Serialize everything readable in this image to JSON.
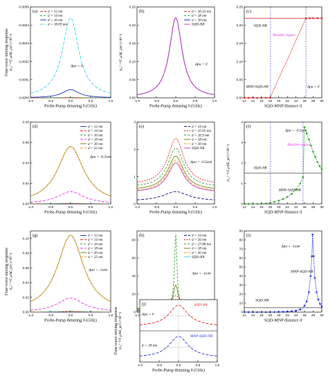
{
  "chart_data": [
    {
      "id": "a",
      "type": "line",
      "panel_label": "(a)",
      "xlabel": "Probe-Pump detuning δ (GHz)",
      "ylabel": "Four-wave mixing response",
      "ylabel2": "|σ₂₁⁽⁻¹⁾/Γ₂μ/ħE_pu²| (×10⁻²)",
      "xlim": [
        -1.0,
        1.0
      ],
      "ylim": [
        0,
        0.0005
      ],
      "xticks": [
        "-1.0",
        "-0.5",
        "0.0",
        "0.5",
        "1.0"
      ],
      "yticks": [
        "0.0000",
        "0.0001",
        "0.0002",
        "0.0003",
        "0.0004",
        "0.0005"
      ],
      "legend": "top-left",
      "annotations": [
        {
          "text": "Δpu = 0",
          "x": 0.0,
          "y": 0.00017,
          "color": "#000000"
        }
      ],
      "series": [
        {
          "name": "d = 12 nm",
          "color": "#e41a1c",
          "dash": "4 2",
          "peak": 5e-07,
          "width": 0.25
        },
        {
          "name": "d = 14 nm",
          "color": "#2ca02c",
          "dash": "3 2",
          "peak": 2e-06,
          "width": 0.25
        },
        {
          "name": "d = 16 nm",
          "color": "#1f2ecf",
          "dash": "",
          "peak": 4.5e-05,
          "width": 0.25
        },
        {
          "name": "d = 18.09 nm",
          "color": "#36d3e8",
          "dash": "5 2",
          "peak": 0.00044,
          "width": 0.25
        }
      ]
    },
    {
      "id": "b",
      "type": "line",
      "panel_label": "(b)",
      "xlabel": "Probe-Pump detuning δ (GHz)",
      "ylabel": "|σ₂₁⁽⁻¹⁾/Γ₂μ/ħE_pu²| (×10⁻²)",
      "xlim": [
        -1.0,
        1.0
      ],
      "ylim": [
        0,
        0.25
      ],
      "xticks": [
        "-1.0",
        "-0.5",
        "0.0",
        "0.5",
        "1.0"
      ],
      "yticks": [
        "0.00",
        "0.05",
        "0.10",
        "0.15",
        "0.20",
        "0.25"
      ],
      "legend": "top-right",
      "annotations": [
        {
          "text": "Δpu = 0",
          "x": 0.5,
          "y": 0.09,
          "color": "#000000"
        }
      ],
      "series": [
        {
          "name": "d = 26.33 nm",
          "color": "#e41a1c",
          "dash": "4 2",
          "peak": 0.22,
          "width": 0.2
        },
        {
          "name": "d = 28 nm",
          "color": "#2ca02c",
          "dash": "3 2",
          "peak": 0.22,
          "width": 0.2
        },
        {
          "name": "d = 30 nm",
          "color": "#1f2ecf",
          "dash": "",
          "peak": 0.22,
          "width": 0.2
        },
        {
          "name": "SQD-NR",
          "color": "#c43cc4",
          "dash": "",
          "peak": 0.22,
          "width": 0.2
        }
      ]
    },
    {
      "id": "c",
      "type": "scatter",
      "panel_label": "(c)",
      "xlabel": "SQD-MNP distance d",
      "ylabel": "",
      "xlim": [
        12,
        30
      ],
      "ylim": [
        0,
        0.25
      ],
      "xticks": [
        "12",
        "14",
        "16",
        "18",
        "20",
        "22",
        "24",
        "26",
        "28",
        "30"
      ],
      "yticks": [
        "0.00",
        "0.05",
        "0.10",
        "0.15",
        "0.20",
        "0.25"
      ],
      "annotations": [
        {
          "text": "SQD-NR",
          "x": 14.2,
          "y": 0.196,
          "color": "#000000"
        },
        {
          "text": "Bistable region",
          "x": 18.6,
          "y": 0.17,
          "color": "#e02de0"
        },
        {
          "text": "MNP-SQD-NR",
          "x": 12.4,
          "y": 0.028,
          "color": "#000000"
        },
        {
          "text": "Δpu = 0",
          "x": 26.6,
          "y": 0.028,
          "color": "#000000"
        }
      ],
      "vlines": [
        18.09,
        26.33
      ],
      "series": [
        {
          "name": "MNP-SQD-NR",
          "color": "#e41a1c",
          "x": [
            12,
            13,
            14,
            15,
            16,
            17,
            18,
            26.33,
            27.2,
            28,
            29,
            30
          ],
          "y": [
            0.0,
            0.0,
            0.0,
            0.0,
            0.0,
            0.0,
            0.0,
            0.219,
            0.219,
            0.219,
            0.219,
            0.219
          ]
        },
        {
          "name": "SQD-NR",
          "color": "#e41a1c",
          "x": [
            12,
            30
          ],
          "y": [
            0.219,
            0.219
          ]
        }
      ]
    },
    {
      "id": "d",
      "type": "line",
      "panel_label": "(d)",
      "xlabel": "Probe-Pump detuning δ (GHz)",
      "ylabel": "",
      "xlim": [
        -1.0,
        1.0
      ],
      "ylim": [
        0,
        0.08
      ],
      "xticks": [
        "-1.0",
        "-0.5",
        "0.0",
        "0.5",
        "1.0"
      ],
      "yticks": [
        "0.00",
        "0.02",
        "0.04",
        "0.06",
        "0.08"
      ],
      "legend": "top-right",
      "annotations": [
        {
          "text": "Δpu = -0.5ωm",
          "x": 0.48,
          "y": 0.045,
          "color": "#000000"
        }
      ],
      "series": [
        {
          "name": "d = 12 nm",
          "color": "#1f2ecf",
          "dash": "",
          "peak": 0.0002,
          "width": 0.4
        },
        {
          "name": "d = 14 nm",
          "color": "#e41a1c",
          "dash": "4 2",
          "peak": 0.0004,
          "width": 0.4
        },
        {
          "name": "d = 16 nm",
          "color": "#2ca02c",
          "dash": "3 2",
          "peak": 0.0006,
          "width": 0.4
        },
        {
          "name": "d = 18 nm",
          "color": "#e02de0",
          "dash": "4 2",
          "peak": 0.012,
          "width": 0.4
        },
        {
          "name": "d = 20 nm",
          "color": "#7a7a10",
          "dash": "",
          "peak": 0.056,
          "width": 0.4
        },
        {
          "name": "d = 22 nm",
          "color": "#e8a020",
          "dash": "4 2",
          "peak": 0.056,
          "width": 0.4
        }
      ]
    },
    {
      "id": "e",
      "type": "line",
      "panel_label": "(e)",
      "xlabel": "Probe-Pump detuning δ (GHz)",
      "ylabel": "",
      "xlim": [
        -1.0,
        1.0
      ],
      "ylim": [
        0,
        3.0
      ],
      "xticks": [
        "-1.0",
        "-0.5",
        "0.0",
        "0.5",
        "1.0"
      ],
      "yticks": [
        "0",
        "1",
        "2",
        "3"
      ],
      "legend": "top-right",
      "annotations": [
        {
          "text": "Δpu = -0.5ωm",
          "x": 0.38,
          "y": 1.5,
          "color": "#000000"
        }
      ],
      "series": [
        {
          "name": "d = 24 nm",
          "color": "#000080",
          "dash": "4 2",
          "peak": 0.45,
          "width": 0.4,
          "base": 0.1
        },
        {
          "name": "d = 25.65 nm",
          "color": "#e41a1c",
          "dash": "2 1.5",
          "peak": 2.4,
          "width": 0.25,
          "base": 0.7
        },
        {
          "name": "d = 26.9 nm",
          "color": "#2ca02c",
          "dash": "3 2",
          "peak": 2.05,
          "width": 0.25,
          "base": 0.6
        },
        {
          "name": "d = 28 nm",
          "color": "#7a7a10",
          "dash": "",
          "peak": 1.75,
          "width": 0.25,
          "base": 0.5
        },
        {
          "name": "d = 30 nm",
          "color": "#e8a020",
          "dash": "4 2",
          "peak": 1.6,
          "width": 0.25,
          "base": 0.45
        },
        {
          "name": "SQD-NR",
          "color": "#c43cc4",
          "dash": "",
          "peak": 1.5,
          "width": 0.25,
          "base": 0.42
        }
      ]
    },
    {
      "id": "f",
      "type": "scatter",
      "panel_label": "(f)",
      "xlabel": "SQD-MNP distance d",
      "ylabel": "|σ₂₁⁽⁻¹⁾/Γ₂μ/ħE_pu²| (×10⁻²)",
      "xlim": [
        12,
        30
      ],
      "ylim": [
        0,
        4.0
      ],
      "xticks": [
        "12",
        "14",
        "16",
        "18",
        "20",
        "22",
        "24",
        "26",
        "28",
        "30"
      ],
      "yticks": [
        "0",
        "1",
        "2",
        "3",
        "4"
      ],
      "annotations": [
        {
          "text": "Δpu = -0.5ωm",
          "x": 21.5,
          "y": 3.55,
          "color": "#000000"
        },
        {
          "text": "Bistable region",
          "x": 22.0,
          "y": 2.85,
          "color": "#e02de0"
        },
        {
          "text": "SQD-NR",
          "x": 14.2,
          "y": 1.72,
          "color": "#000000"
        },
        {
          "text": "MNP-SQD-NR",
          "x": 20.0,
          "y": 0.62,
          "color": "#000000"
        }
      ],
      "vlines": [
        18.09,
        25.65
      ],
      "series": [
        {
          "name": "MNP-SQD-NR",
          "color": "#2ca02c",
          "x": [
            12,
            13,
            14,
            15,
            16,
            17,
            18,
            19,
            20,
            21,
            22,
            23,
            24,
            25,
            25.65,
            26,
            26.5,
            27,
            27.5,
            28,
            28.5,
            29,
            29.5,
            30
          ],
          "y": [
            0.0,
            0.0,
            0.0,
            0.0,
            0.01,
            0.02,
            0.05,
            0.1,
            0.16,
            0.24,
            0.34,
            0.48,
            0.7,
            1.0,
            1.3,
            3.75,
            3.45,
            3.15,
            2.85,
            2.55,
            2.3,
            2.05,
            1.85,
            1.7
          ]
        },
        {
          "name": "SQD-NR",
          "color": "#444444",
          "x": [
            12,
            30
          ],
          "y": [
            1.5,
            1.5
          ]
        }
      ]
    },
    {
      "id": "g",
      "type": "line",
      "panel_label": "(g)",
      "xlabel": "Probe-Pump detuning δ (GHz)",
      "ylabel": "Four-wave mixing response",
      "ylabel2": "|σ₂₁⁽⁻¹⁾/Γ₂μ/ħE_pu²| (×10⁻²)",
      "xlim": [
        -1.0,
        1.0
      ],
      "ylim": [
        0,
        0.11
      ],
      "xticks": [
        "-1.0",
        "-0.5",
        "0.0",
        "0.5",
        "1.0"
      ],
      "yticks": [
        "0.00",
        "0.02",
        "0.04",
        "0.06",
        "0.08",
        "0.10"
      ],
      "legend": "top-right",
      "annotations": [
        {
          "text": "Δpu = -1ωm",
          "x": 0.45,
          "y": 0.056,
          "color": "#000000"
        }
      ],
      "series": [
        {
          "name": "d = 12 nm",
          "color": "#1f2ecf",
          "dash": "",
          "peak": 0.0003,
          "width": 0.4
        },
        {
          "name": "d = 14 nm",
          "color": "#e41a1c",
          "dash": "4 2",
          "peak": 0.0005,
          "width": 0.4
        },
        {
          "name": "d = 16 nm",
          "color": "#2ca02c",
          "dash": "3 2",
          "peak": 0.001,
          "width": 0.4
        },
        {
          "name": "d = 18 nm",
          "color": "#e02de0",
          "dash": "4 2",
          "peak": 0.019,
          "width": 0.4
        },
        {
          "name": "d = 20 nm",
          "color": "#7a7a10",
          "dash": "",
          "peak": 0.104,
          "width": 0.4
        },
        {
          "name": "d = 22 nm",
          "color": "#e8a020",
          "dash": "4 2",
          "peak": 0.104,
          "width": 0.4
        }
      ]
    },
    {
      "id": "h",
      "type": "line",
      "panel_label": "(h)",
      "xlabel": "Probe-Pump detuning δ (GHz)",
      "ylabel": "",
      "xlim": [
        -1.0,
        1.0
      ],
      "ylim": [
        0,
        90
      ],
      "xticks": [
        "-1.0",
        "-0.5",
        "0.0",
        "0.5",
        "1.0"
      ],
      "yticks": [
        "0",
        "20",
        "40",
        "60",
        "80"
      ],
      "legend": "top-right",
      "annotations": [
        {
          "text": "Δpu = -1ωm",
          "x": 0.42,
          "y": 42,
          "color": "#000000"
        }
      ],
      "series": [
        {
          "name": "d = 24 nm",
          "color": "#000080",
          "dash": "4 2",
          "peak": 6,
          "width": 0.35,
          "base": 1
        },
        {
          "name": "d = 26 nm",
          "color": "#e41a1c",
          "dash": "2 1.5",
          "peak": 18,
          "width": 0.22,
          "base": 3
        },
        {
          "name": "d = 27.86 nm",
          "color": "#2ca02c",
          "dash": "3 2",
          "peak": 86,
          "width": 0.04,
          "base": 4
        },
        {
          "name": "d = 28 nm",
          "color": "#7a7a10",
          "dash": "",
          "peak": 30,
          "width": 0.08,
          "base": 3
        },
        {
          "name": "d = 30 nm",
          "color": "#e8a020",
          "dash": "4 2",
          "peak": 12,
          "width": 0.15,
          "base": 2
        },
        {
          "name": "SQD-NR",
          "color": "#36d3e8",
          "dash": "",
          "peak": 5,
          "width": 0.25,
          "base": 1
        }
      ]
    },
    {
      "id": "i",
      "type": "scatter",
      "panel_label": "(i)",
      "xlabel": "SQD-MNP distance d",
      "ylabel": "",
      "xlim": [
        12,
        30
      ],
      "ylim": [
        0,
        90
      ],
      "xticks": [
        "12",
        "14",
        "16",
        "18",
        "20",
        "22",
        "24",
        "26",
        "28",
        "30"
      ],
      "yticks": [
        "0",
        "10",
        "20",
        "30",
        "40",
        "50",
        "60",
        "70",
        "80",
        "90"
      ],
      "annotations": [
        {
          "text": "Δpu = -1ωm",
          "x": 20.6,
          "y": 72,
          "color": "#000000"
        },
        {
          "text": "MNP-SQD-NR",
          "x": 22.8,
          "y": 44,
          "color": "#000000"
        },
        {
          "text": "SQD-NR",
          "x": 14.6,
          "y": 12,
          "color": "#000000"
        }
      ],
      "series": [
        {
          "name": "MNP-SQD-NR",
          "color": "#1f2ecf",
          "x": [
            12,
            13,
            14,
            15,
            16,
            17,
            18,
            19,
            20,
            21,
            22,
            23,
            24,
            25,
            26,
            26.5,
            27,
            27.4,
            27.7,
            27.86,
            28.1,
            28.4,
            28.8,
            29.2,
            29.6,
            30
          ],
          "y": [
            0,
            0,
            0,
            0,
            0,
            0,
            0,
            0.1,
            0.2,
            0.3,
            0.5,
            0.9,
            1.6,
            3,
            7,
            12,
            22,
            40,
            62,
            86,
            62,
            38,
            22,
            14,
            9,
            6
          ]
        },
        {
          "name": "SQD-NR",
          "color": "#444444",
          "x": [
            12,
            30
          ],
          "y": [
            4.8,
            4.8
          ]
        }
      ]
    },
    {
      "id": "j",
      "type": "line",
      "panel_label": "(j)",
      "xlabel": "Probe-Pump detuning δ (GHz)",
      "ylabel": "Four-wave mixing response",
      "ylabel2": "|σ₂₁⁽⁻¹⁾/Γ₂μ/ħE_pu²| (×10⁻²)",
      "xlim": [
        -1.0,
        1.0
      ],
      "xticks": [
        "-1.0",
        "-0.5",
        "0.0",
        "0.5",
        "1.0"
      ],
      "annotations": [
        {
          "text": "Δpu = 0",
          "x": -0.95,
          "y": 0.75,
          "color": "#000000"
        },
        {
          "text": "SQD-NR",
          "x": 0.4,
          "y": 0.9,
          "color": "#e41a1c"
        },
        {
          "text": "MNP-SQD-NR",
          "x": 0.3,
          "y": 0.4,
          "color": "#1f2ecf"
        },
        {
          "text": "d = 18 nm",
          "x": -0.95,
          "y": 0.25,
          "color": "#000000"
        }
      ],
      "series": [
        {
          "name": "SQD-NR",
          "color": "#e41a1c",
          "dash": "4 2",
          "peak": 1.0,
          "width": 0.3
        },
        {
          "name": "MNP-SQD-NR",
          "color": "#1f2ecf",
          "dash": "4 2",
          "peak": 1.0,
          "width": 0.3
        }
      ]
    }
  ]
}
